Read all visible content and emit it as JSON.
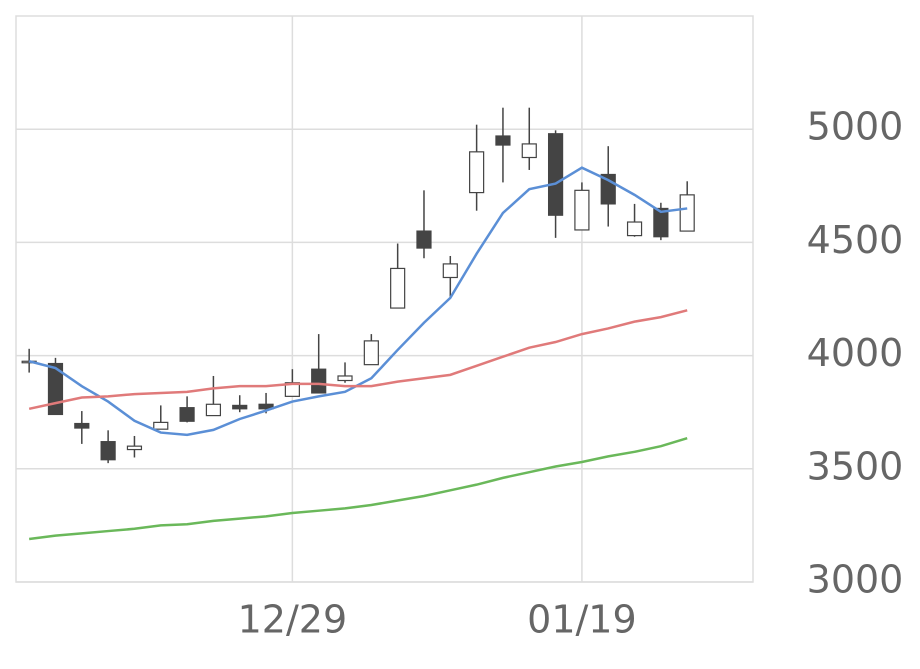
{
  "chart_data": {
    "type": "candlestick",
    "categories": [
      null,
      null,
      null,
      null,
      null,
      null,
      null,
      null,
      null,
      null,
      "12/29",
      null,
      null,
      null,
      null,
      null,
      null,
      null,
      null,
      null,
      null,
      "01/19",
      null,
      null,
      null,
      null,
      null,
      null
    ],
    "open": [
      3970,
      3965,
      3700,
      3620,
      3585,
      3675,
      3770,
      3735,
      3780,
      3785,
      3820,
      3940,
      3890,
      3960,
      4210,
      4550,
      4345,
      4720,
      4970,
      4875,
      4980,
      4555,
      4800,
      4530,
      4650,
      4550,
      null,
      null
    ],
    "high": [
      4030,
      3990,
      3755,
      3670,
      3645,
      3780,
      3820,
      3910,
      3825,
      3835,
      3940,
      4095,
      3970,
      4095,
      4495,
      4730,
      4440,
      5020,
      5095,
      5095,
      4995,
      4765,
      4925,
      4670,
      4675,
      4770,
      null,
      null
    ],
    "low": [
      3925,
      3740,
      3610,
      3525,
      3550,
      3675,
      3705,
      3735,
      3750,
      3745,
      3820,
      3835,
      3880,
      3960,
      4210,
      4430,
      4255,
      4640,
      4765,
      4820,
      4520,
      4555,
      4570,
      4525,
      4510,
      4550,
      null,
      null
    ],
    "close": [
      3975,
      3740,
      3680,
      3540,
      3600,
      3705,
      3710,
      3785,
      3765,
      3765,
      3880,
      3835,
      3910,
      4065,
      4385,
      4475,
      4405,
      4900,
      4930,
      4935,
      4620,
      4730,
      4670,
      4590,
      4525,
      4710,
      null,
      null
    ],
    "up_color": "#ffffff",
    "down_color": "#444444",
    "edge_color": "#444444",
    "series": [
      {
        "color": "#5b8fd6",
        "values": [
          3975,
          3945,
          3865,
          3797,
          3712,
          3660,
          3650,
          3672,
          3720,
          3757,
          3797,
          3820,
          3840,
          3900,
          4025,
          4145,
          4255,
          4450,
          4630,
          4735,
          4760,
          4830,
          4775,
          4710,
          4635,
          4650,
          null,
          null
        ]
      },
      {
        "color": "#e07a7a",
        "values": [
          3765,
          3790,
          3815,
          3820,
          3830,
          3835,
          3840,
          3855,
          3865,
          3865,
          3875,
          3875,
          3865,
          3865,
          3885,
          3900,
          3915,
          3955,
          3995,
          4035,
          4060,
          4095,
          4120,
          4150,
          4170,
          4200,
          null,
          null
        ]
      },
      {
        "color": "#6ab85a",
        "values": [
          3190,
          3205,
          3215,
          3225,
          3235,
          3250,
          3255,
          3270,
          3280,
          3290,
          3305,
          3315,
          3325,
          3340,
          3360,
          3380,
          3405,
          3430,
          3460,
          3485,
          3510,
          3530,
          3555,
          3575,
          3600,
          3635,
          null,
          null
        ]
      }
    ],
    "ylim": [
      3000,
      5500
    ],
    "yticks": [
      3000,
      3500,
      4000,
      4500,
      5000
    ],
    "grid": true
  }
}
